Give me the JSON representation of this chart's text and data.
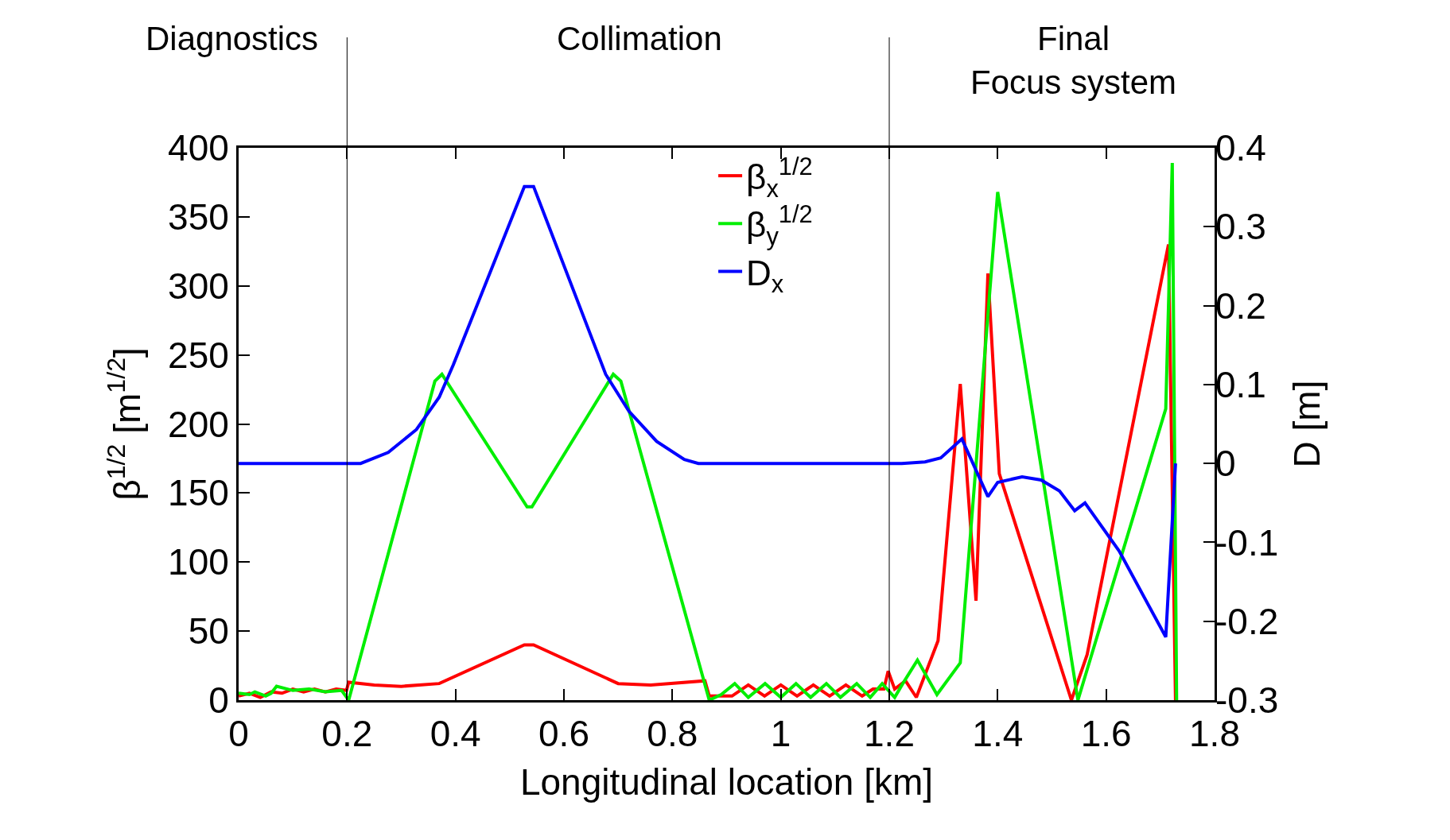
{
  "chart_data": {
    "type": "line",
    "xlabel": "Longitudinal location [km]",
    "ylabel": "β$^{1/2}$ [m$^{1/2}$]",
    "y2label": "D [m]",
    "annotations": [
      "Diagnostics",
      "Collimation",
      "Final\nFocus system"
    ],
    "ref_lines": [
      {
        "axis": "x",
        "value": 0.2,
        "color": "#000000"
      },
      {
        "axis": "x",
        "value": 1.2,
        "color": "#000000"
      }
    ],
    "xlim": [
      0,
      1.8
    ],
    "xticks": [
      0,
      0.2,
      0.4,
      0.6,
      0.8,
      1,
      1.2,
      1.4,
      1.6,
      1.8
    ],
    "ylim": [
      0,
      400
    ],
    "yticks": [
      0,
      50,
      100,
      150,
      200,
      250,
      300,
      350,
      400
    ],
    "y2lim": [
      -0.3,
      0.4
    ],
    "y2ticks": [
      -0.3,
      -0.2,
      -0.1,
      0,
      0.1,
      0.2,
      0.3,
      0.4
    ],
    "grid": false,
    "legend": "top",
    "marker": "none",
    "line_style": "solid",
    "series": [
      {
        "name": "β$_{x}$$^{1/2}$",
        "color": "#ff0000",
        "x": [
          0,
          0.02,
          0.04,
          0.06,
          0.08,
          0.1,
          0.12,
          0.14,
          0.16,
          0.18,
          0.199,
          0.203,
          0.25,
          0.3,
          0.37,
          0.527,
          0.544,
          0.7,
          0.76,
          0.86,
          0.868,
          0.91,
          0.94,
          0.97,
          1.0,
          1.03,
          1.06,
          1.09,
          1.12,
          1.15,
          1.17,
          1.19,
          1.198,
          1.21,
          1.23,
          1.25,
          1.29,
          1.331,
          1.36,
          1.382,
          1.403,
          1.536,
          1.565,
          1.715,
          1.728
        ],
        "values": [
          3,
          5,
          2,
          6,
          5,
          8,
          6,
          8,
          6,
          8,
          7,
          13,
          11,
          10,
          12,
          40,
          40,
          12,
          11,
          14,
          3,
          3,
          11,
          3,
          11,
          3,
          11,
          3,
          11,
          3,
          8,
          8,
          21,
          8,
          14,
          2,
          43,
          229,
          72,
          309,
          164,
          0,
          33,
          330,
          0
        ]
      },
      {
        "name": "β$_{y}$$^{1/2}$",
        "color": "#00ee00",
        "x": [
          0,
          0.02,
          0.03,
          0.05,
          0.06,
          0.07,
          0.1,
          0.13,
          0.16,
          0.19,
          0.203,
          0.362,
          0.375,
          0.532,
          0.541,
          0.691,
          0.705,
          0.868,
          0.89,
          0.915,
          0.94,
          0.971,
          1.0,
          1.028,
          1.055,
          1.084,
          1.11,
          1.14,
          1.165,
          1.187,
          1.21,
          1.225,
          1.252,
          1.288,
          1.331,
          1.4,
          1.548,
          1.71,
          1.722,
          1.73
        ],
        "values": [
          5,
          4,
          6,
          3,
          5,
          10,
          7,
          8,
          6,
          7,
          0,
          231,
          236,
          140,
          140,
          236,
          231,
          0,
          4,
          12,
          2,
          12,
          2,
          12,
          2,
          12,
          2,
          12,
          2,
          12,
          2,
          12,
          29,
          4,
          27,
          368,
          0,
          211,
          389,
          0
        ]
      },
      {
        "name": "D$_{x}$",
        "color": "#0000ff",
        "axis": "y2",
        "x": [
          0,
          0.225,
          0.276,
          0.328,
          0.37,
          0.396,
          0.527,
          0.544,
          0.677,
          0.72,
          0.771,
          0.822,
          0.848,
          1.223,
          1.266,
          1.295,
          1.334,
          1.382,
          1.4,
          1.445,
          1.48,
          1.514,
          1.542,
          1.561,
          1.624,
          1.71,
          1.728
        ],
        "values": [
          0,
          0,
          0.014,
          0.043,
          0.084,
          0.125,
          0.351,
          0.351,
          0.113,
          0.066,
          0.028,
          0.005,
          0,
          0,
          0.002,
          0.007,
          0.031,
          -0.042,
          -0.024,
          -0.017,
          -0.021,
          -0.035,
          -0.06,
          -0.05,
          -0.111,
          -0.22,
          0
        ]
      }
    ]
  }
}
